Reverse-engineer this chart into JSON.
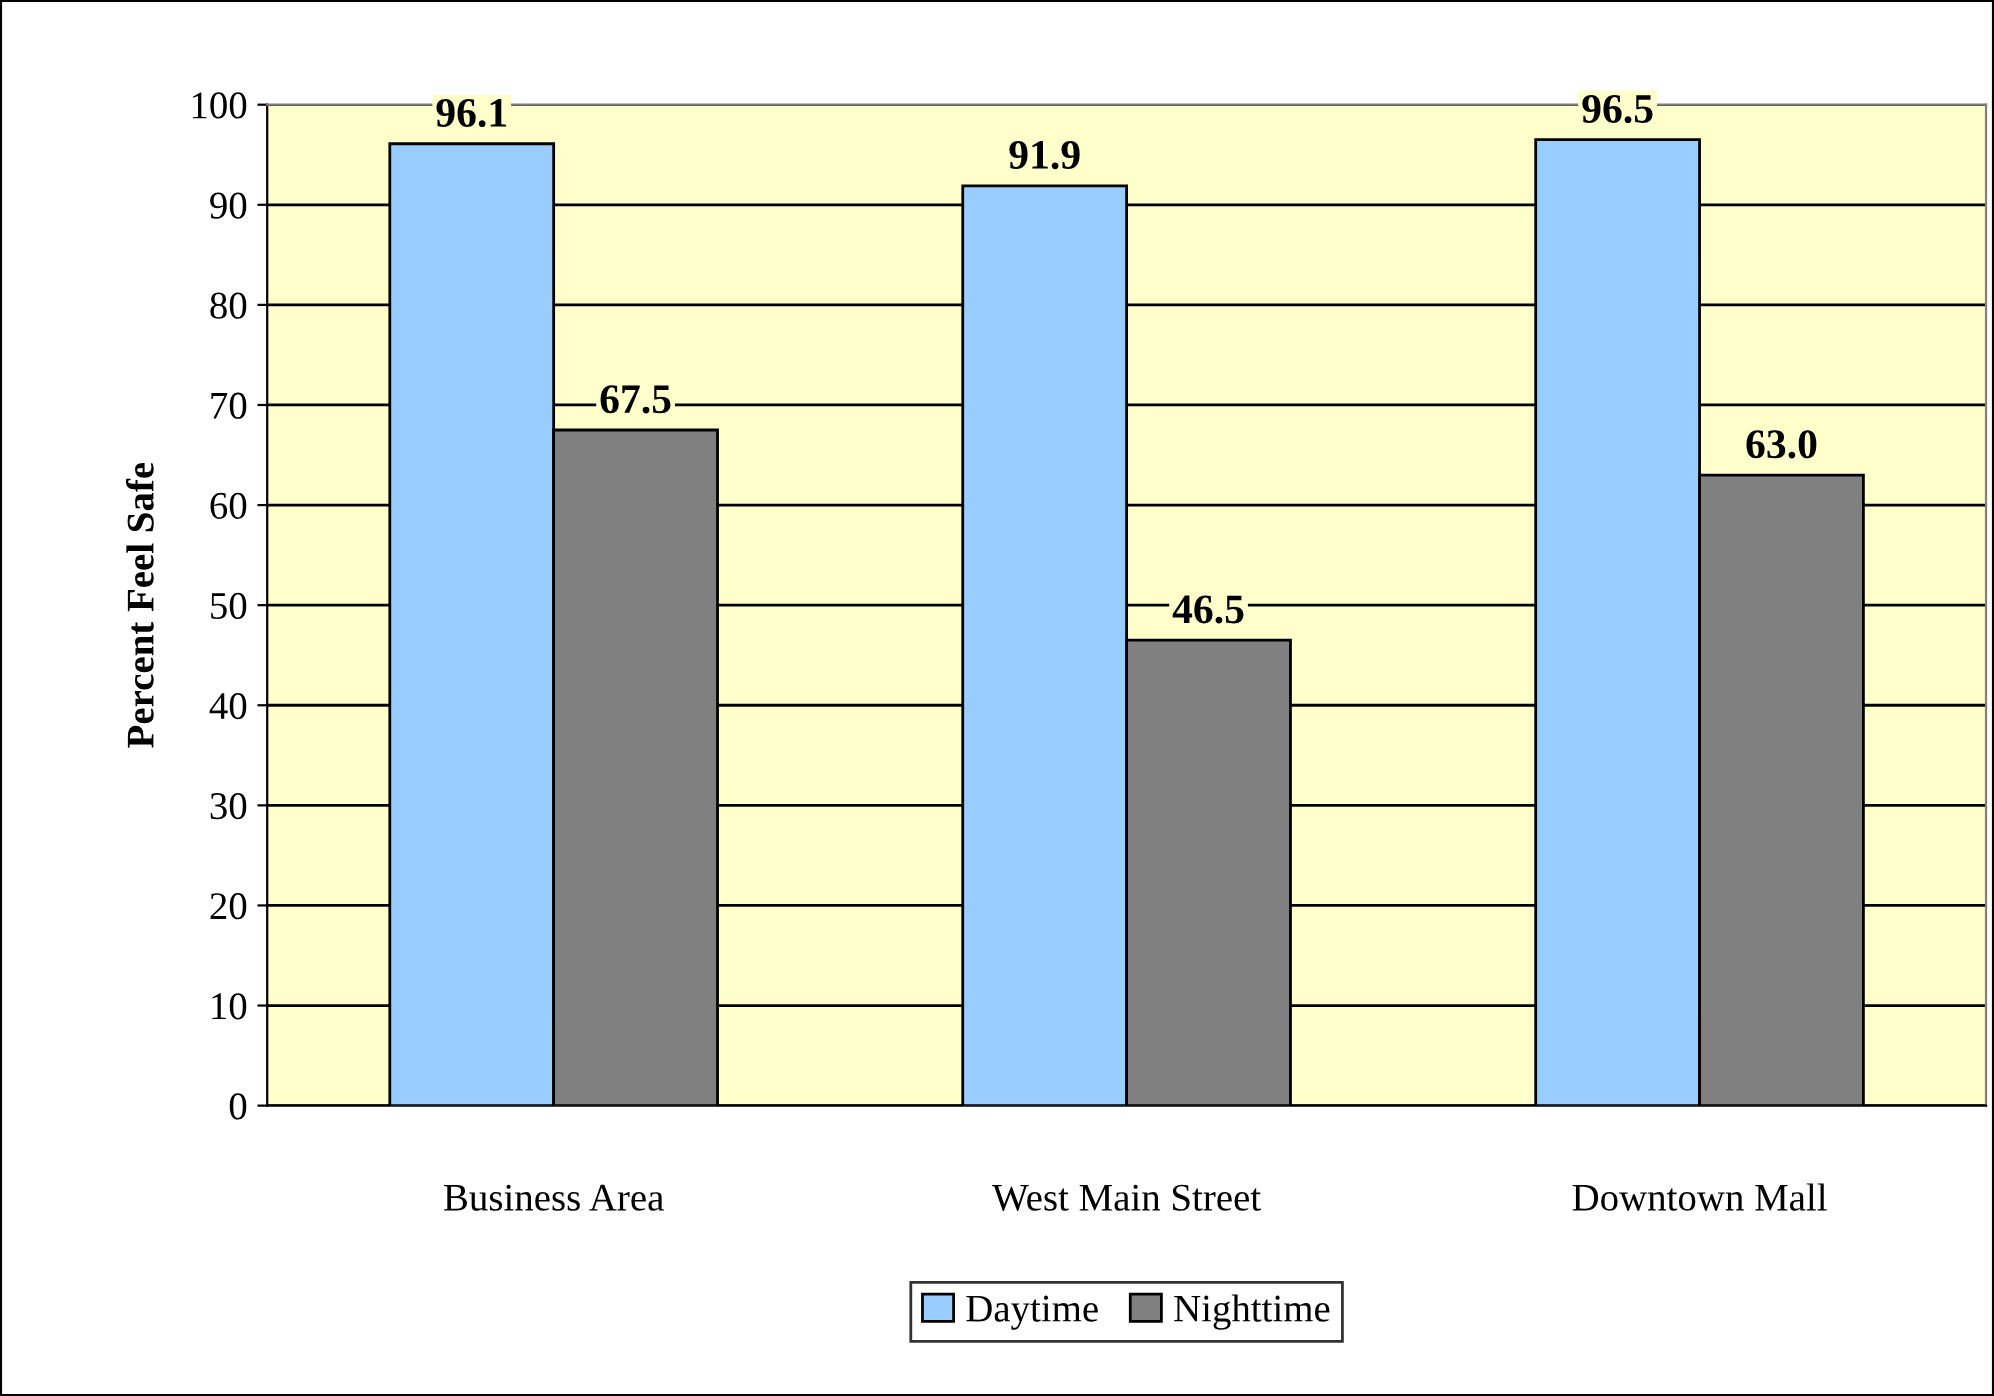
{
  "chart_data": {
    "type": "bar",
    "ylabel": "Percent Feel Safe",
    "categories": [
      "Business Area",
      "West Main Street",
      "Downtown Mall"
    ],
    "series": [
      {
        "name": "Daytime",
        "color": "#99ccff",
        "values": [
          96.1,
          91.9,
          96.5
        ],
        "value_labels": [
          "96.1",
          "91.9",
          "96.5"
        ]
      },
      {
        "name": "Nighttime",
        "color": "#808080",
        "values": [
          67.5,
          46.5,
          63.0
        ],
        "value_labels": [
          "67.5",
          "46.5",
          "63.0"
        ]
      }
    ],
    "ylim": [
      0,
      100
    ],
    "yticks": [
      0,
      10,
      20,
      30,
      40,
      50,
      60,
      70,
      80,
      90,
      100
    ],
    "grid": "y",
    "legend": "bottom"
  }
}
